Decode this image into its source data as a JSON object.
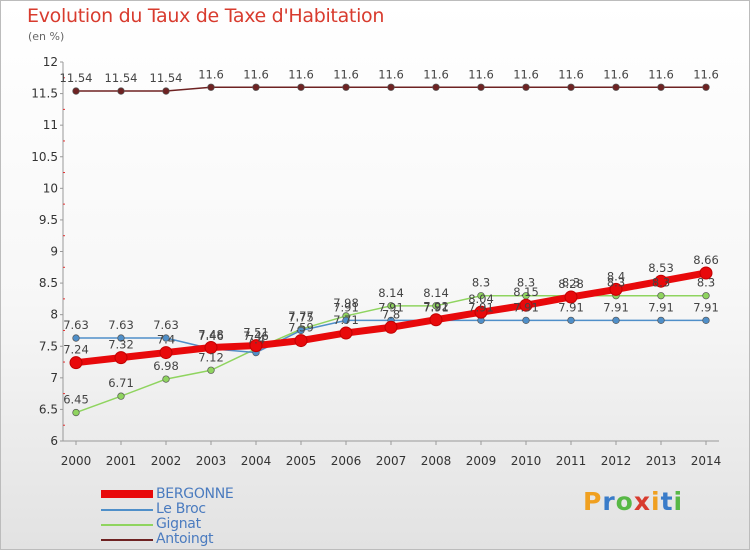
{
  "header": {
    "title": "Evolution du Taux de Taxe d'Habitation",
    "unit": "(en %)"
  },
  "logo": {
    "text": "Proxiti"
  },
  "chart_data": {
    "type": "line",
    "title": "Evolution du Taux de Taxe d'Habitation",
    "subtitle": "(en %)",
    "xlabel": "",
    "ylabel": "",
    "x": [
      2000,
      2001,
      2002,
      2003,
      2004,
      2005,
      2006,
      2007,
      2008,
      2009,
      2010,
      2011,
      2012,
      2013,
      2014
    ],
    "ylim": [
      6,
      12
    ],
    "yticks": [
      6,
      6.5,
      7,
      7.5,
      8,
      8.5,
      9,
      9.5,
      10,
      10.5,
      11,
      11.5,
      12
    ],
    "grid": false,
    "legend_position": "bottom-left",
    "series": [
      {
        "name": "BERGONNE",
        "color": "#e8090b",
        "values": [
          7.24,
          7.32,
          7.4,
          7.48,
          7.51,
          7.59,
          7.71,
          7.8,
          7.92,
          8.04,
          8.15,
          8.28,
          8.4,
          8.53,
          8.66
        ],
        "labels": [
          "7.24",
          "7.32",
          "7.4",
          "7.48",
          "7.51",
          "7.59",
          "7.71",
          "7.8",
          "7.92",
          "8.04",
          "8.15",
          "8.28",
          "8.4",
          "8.53",
          "8.66"
        ]
      },
      {
        "name": "Le Broc",
        "color": "#4f8fc9",
        "values": [
          7.63,
          7.63,
          7.63,
          7.46,
          7.4,
          7.75,
          7.91,
          7.91,
          7.91,
          7.91,
          7.91,
          7.91,
          7.91,
          7.91,
          7.91
        ],
        "labels": [
          "7.63",
          "7.63",
          "7.63",
          "7.46",
          "7.4",
          "7.75",
          "7.91",
          "7.91",
          "7.91",
          "7.91",
          "7.91",
          "7.91",
          "7.91",
          "7.91",
          "7.91"
        ]
      },
      {
        "name": "Gignat",
        "color": "#8fd45f",
        "values": [
          6.45,
          6.71,
          6.98,
          7.12,
          7.46,
          7.77,
          7.98,
          8.14,
          8.14,
          8.3,
          8.3,
          8.3,
          8.3,
          8.3,
          8.3
        ],
        "labels": [
          "6.45",
          "6.71",
          "6.98",
          "7.12",
          "7.46",
          "7.77",
          "7.98",
          "8.14",
          "8.14",
          "8.3",
          "8.3",
          "8.3",
          "8.3",
          "8.3",
          "8.3"
        ]
      },
      {
        "name": "Antoingt",
        "color": "#6e2222",
        "values": [
          11.54,
          11.54,
          11.54,
          11.6,
          11.6,
          11.6,
          11.6,
          11.6,
          11.6,
          11.6,
          11.6,
          11.6,
          11.6,
          11.6,
          11.6
        ],
        "labels": [
          "11.54",
          "11.54",
          "11.54",
          "11.6",
          "11.6",
          "11.6",
          "11.6",
          "11.6",
          "11.6",
          "11.6",
          "11.6",
          "11.6",
          "11.6",
          "11.6",
          "11.6"
        ]
      }
    ]
  }
}
